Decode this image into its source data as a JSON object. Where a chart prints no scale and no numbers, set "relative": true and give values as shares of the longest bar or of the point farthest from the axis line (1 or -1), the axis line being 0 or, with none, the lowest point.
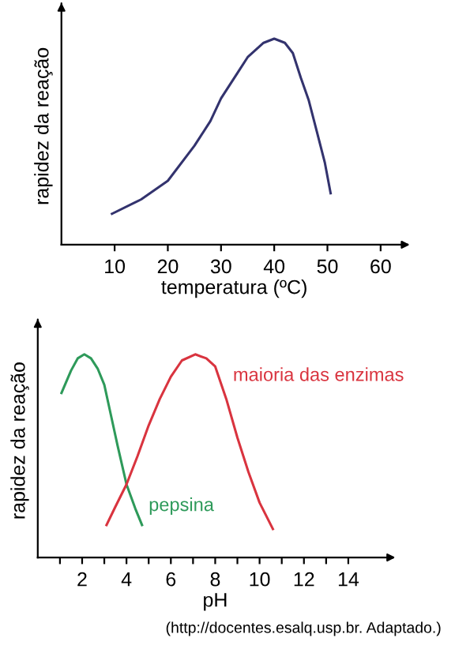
{
  "chart_data": [
    {
      "type": "line",
      "relative": true,
      "xlabel": "temperatura (ºC)",
      "ylabel": "rapidez da reação",
      "xlim": [
        0,
        65
      ],
      "xticks": [
        10,
        20,
        30,
        40,
        50,
        60
      ],
      "series": [
        {
          "color": "#33336e",
          "x": [
            9.5,
            15,
            20,
            25,
            28,
            30,
            33,
            35,
            38,
            40,
            42,
            43.5,
            45,
            46.5,
            48,
            49.5,
            50.6
          ],
          "values": [
            0.15,
            0.22,
            0.31,
            0.48,
            0.6,
            0.71,
            0.83,
            0.91,
            0.98,
            1.0,
            0.98,
            0.93,
            0.81,
            0.7,
            0.55,
            0.4,
            0.25
          ]
        }
      ]
    },
    {
      "type": "line",
      "relative": true,
      "xlabel": "pH",
      "ylabel": "rapidez da reação",
      "xlim": [
        0,
        16
      ],
      "xticks": [
        {
          "value": 1,
          "label": null
        },
        2,
        {
          "value": 3,
          "label": null
        },
        4,
        {
          "value": 5,
          "label": null
        },
        6,
        {
          "value": 7,
          "label": null
        },
        8,
        {
          "value": 9,
          "label": null
        },
        10,
        {
          "value": 11,
          "label": null
        },
        12,
        {
          "value": 13,
          "label": null
        },
        14
      ],
      "series": [
        {
          "name": "pepsina",
          "color": "#2e9a5a",
          "x": [
            1.07,
            1.5,
            1.8,
            2.1,
            2.4,
            2.7,
            3.0,
            3.3,
            3.6,
            4.0,
            4.4,
            4.7
          ],
          "values": [
            0.81,
            0.92,
            0.98,
            1.0,
            0.98,
            0.93,
            0.85,
            0.7,
            0.55,
            0.36,
            0.24,
            0.16
          ]
        },
        {
          "name": "maioria das enzimas",
          "color": "#d9343f",
          "x": [
            3.1,
            3.5,
            4.0,
            4.5,
            5.0,
            5.5,
            6.0,
            6.5,
            7.1,
            7.6,
            8.0,
            8.5,
            9.0,
            9.5,
            10.0,
            10.6
          ],
          "values": [
            0.16,
            0.25,
            0.36,
            0.5,
            0.65,
            0.78,
            0.89,
            0.97,
            1.0,
            0.98,
            0.94,
            0.78,
            0.59,
            0.42,
            0.27,
            0.14
          ]
        }
      ],
      "annotations": [
        "(http://docentes.esalq.usp.br. Adaptado.)"
      ]
    }
  ]
}
